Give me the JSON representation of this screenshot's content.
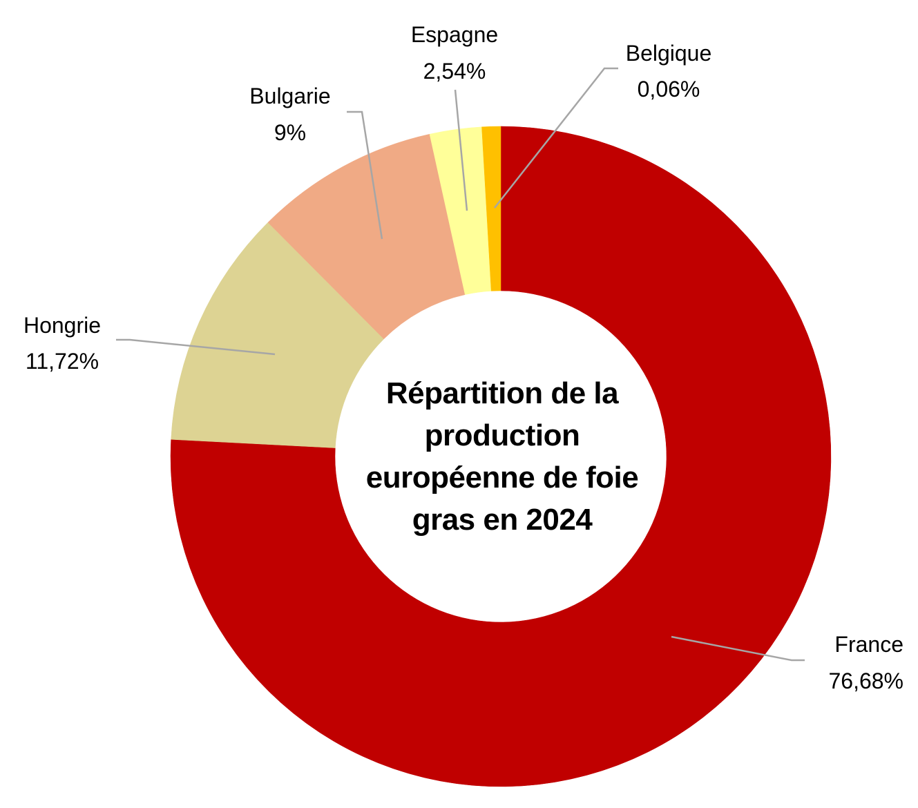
{
  "chart_data": {
    "type": "donut",
    "title": "Répartition de la production européenne de foie gras en 2024",
    "slices": [
      {
        "name": "France",
        "value": 76.68,
        "label": "76,68%",
        "color": "#C00000"
      },
      {
        "name": "Hongrie",
        "value": 11.72,
        "label": "11,72%",
        "color": "#DDD393"
      },
      {
        "name": "Bulgarie",
        "value": 9,
        "label": "9%",
        "color": "#F0AA85"
      },
      {
        "name": "Espagne",
        "value": 2.54,
        "label": "2,54%",
        "color": "#FFFF99"
      },
      {
        "name": "Belgique",
        "value": 0.06,
        "label": "0,06%",
        "color": "#FFC000"
      }
    ],
    "label_style": "outside with leader lines",
    "legend": "none"
  }
}
